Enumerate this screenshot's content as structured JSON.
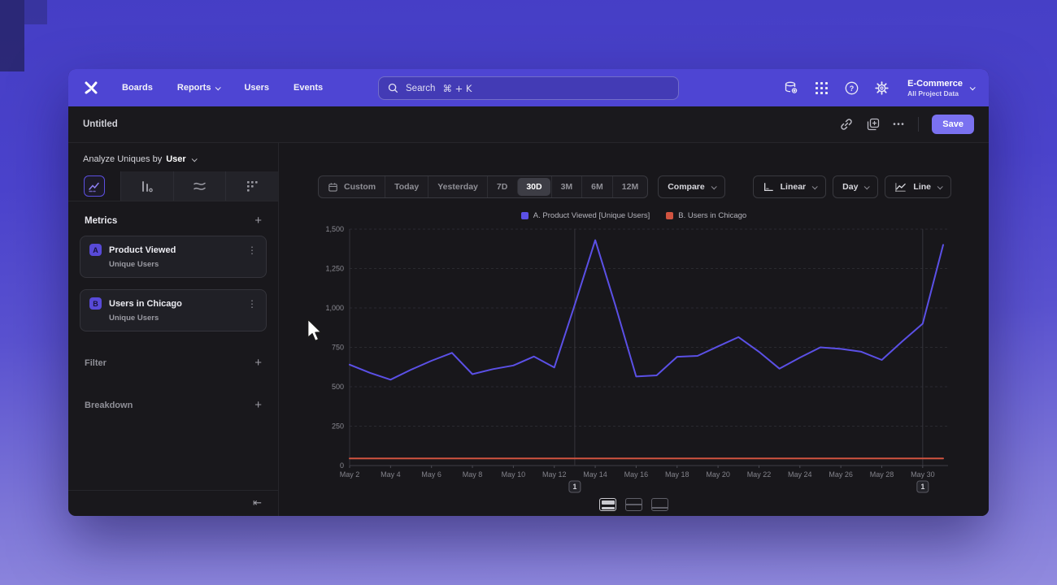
{
  "nav": {
    "items": [
      "Boards",
      "Reports",
      "Users",
      "Events"
    ],
    "search_placeholder": "Search",
    "search_shortcut": "⌘ + K",
    "project_name": "E-Commerce",
    "project_subtitle": "All Project Data"
  },
  "titlebar": {
    "title": "Untitled",
    "menu_dots": "•••",
    "save_label": "Save"
  },
  "sidebar": {
    "analyze_prefix": "Analyze Uniques by",
    "analyze_entity": "User",
    "metrics_header": "Metrics",
    "add_symbol": "+",
    "metrics": [
      {
        "badge": "A",
        "name": "Product Viewed",
        "subtitle": "Unique Users"
      },
      {
        "badge": "B",
        "name": "Users in Chicago",
        "subtitle": "Unique Users"
      }
    ],
    "filter_header": "Filter",
    "breakdown_header": "Breakdown",
    "collapse_symbol": "⇤",
    "kebab_symbol": "⋮"
  },
  "toolbar": {
    "ranges": [
      "Custom",
      "Today",
      "Yesterday",
      "7D",
      "30D",
      "3M",
      "6M",
      "12M"
    ],
    "selected_range": "30D",
    "compare_label": "Compare",
    "scale_label": "Linear",
    "interval_label": "Day",
    "chart_type_label": "Line"
  },
  "chart_data": {
    "type": "line",
    "x": [
      "May 2",
      "May 3",
      "May 4",
      "May 5",
      "May 6",
      "May 7",
      "May 8",
      "May 9",
      "May 10",
      "May 11",
      "May 12",
      "May 13",
      "May 14",
      "May 15",
      "May 16",
      "May 17",
      "May 18",
      "May 19",
      "May 20",
      "May 21",
      "May 22",
      "May 23",
      "May 24",
      "May 25",
      "May 26",
      "May 27",
      "May 28",
      "May 29",
      "May 30",
      "May 31"
    ],
    "x_tick_step": 2,
    "ylim": [
      0,
      1500
    ],
    "yticks": [
      0,
      250,
      500,
      750,
      1000,
      1250,
      1500
    ],
    "y_tick_labels": [
      "0",
      "250",
      "500",
      "750",
      "1,000",
      "1,250",
      "1,500"
    ],
    "grid": "horizontal-dashed",
    "legend_position": "top-center",
    "series": [
      {
        "name": "A. Product Viewed [Unique Users]",
        "color": "#5b50e6",
        "values": [
          640,
          588,
          545,
          608,
          665,
          715,
          580,
          612,
          635,
          692,
          622,
          1020,
          1430,
          1010,
          565,
          572,
          690,
          696,
          756,
          815,
          722,
          615,
          685,
          750,
          740,
          722,
          670,
          788,
          900,
          1400
        ]
      },
      {
        "name": "B. Users in Chicago",
        "color": "#d05340",
        "values": [
          45,
          45,
          45,
          45,
          45,
          45,
          45,
          45,
          45,
          45,
          45,
          45,
          45,
          45,
          45,
          45,
          45,
          45,
          45,
          45,
          45,
          45,
          45,
          45,
          45,
          45,
          45,
          45,
          45,
          45
        ]
      }
    ],
    "annotations": [
      {
        "index": 11,
        "x": "May 13",
        "label": "1"
      },
      {
        "index": 28,
        "x": "May 30",
        "label": "1"
      }
    ]
  },
  "footer": {
    "view_options": [
      "chart-with-table-view",
      "split-view",
      "table-view"
    ]
  },
  "colors": {
    "nav_bar": "#4e45d3",
    "save_button": "#7a71f0",
    "accent": "#5b50e6"
  }
}
